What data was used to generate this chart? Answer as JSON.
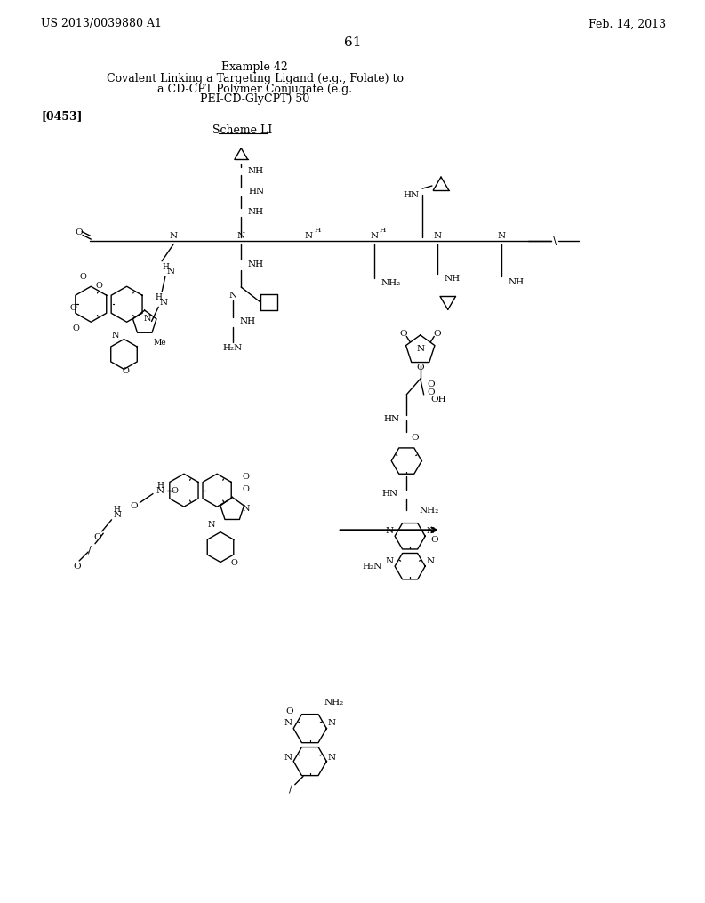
{
  "page_number": "61",
  "patent_number": "US 2013/0039880 A1",
  "patent_date": "Feb. 14, 2013",
  "example_title": "Example 42",
  "subtitle1": "Covalent Linking a Targeting Ligand (e.g., Folate) to",
  "subtitle2": "a CD-CPT Polymer Conjugate (e.g.",
  "subtitle3": "PEI-CD-GlyCPT) 50",
  "paragraph_id": "[0453]",
  "scheme_label": "Scheme LI",
  "bg_color": "#ffffff",
  "text_color": "#000000"
}
